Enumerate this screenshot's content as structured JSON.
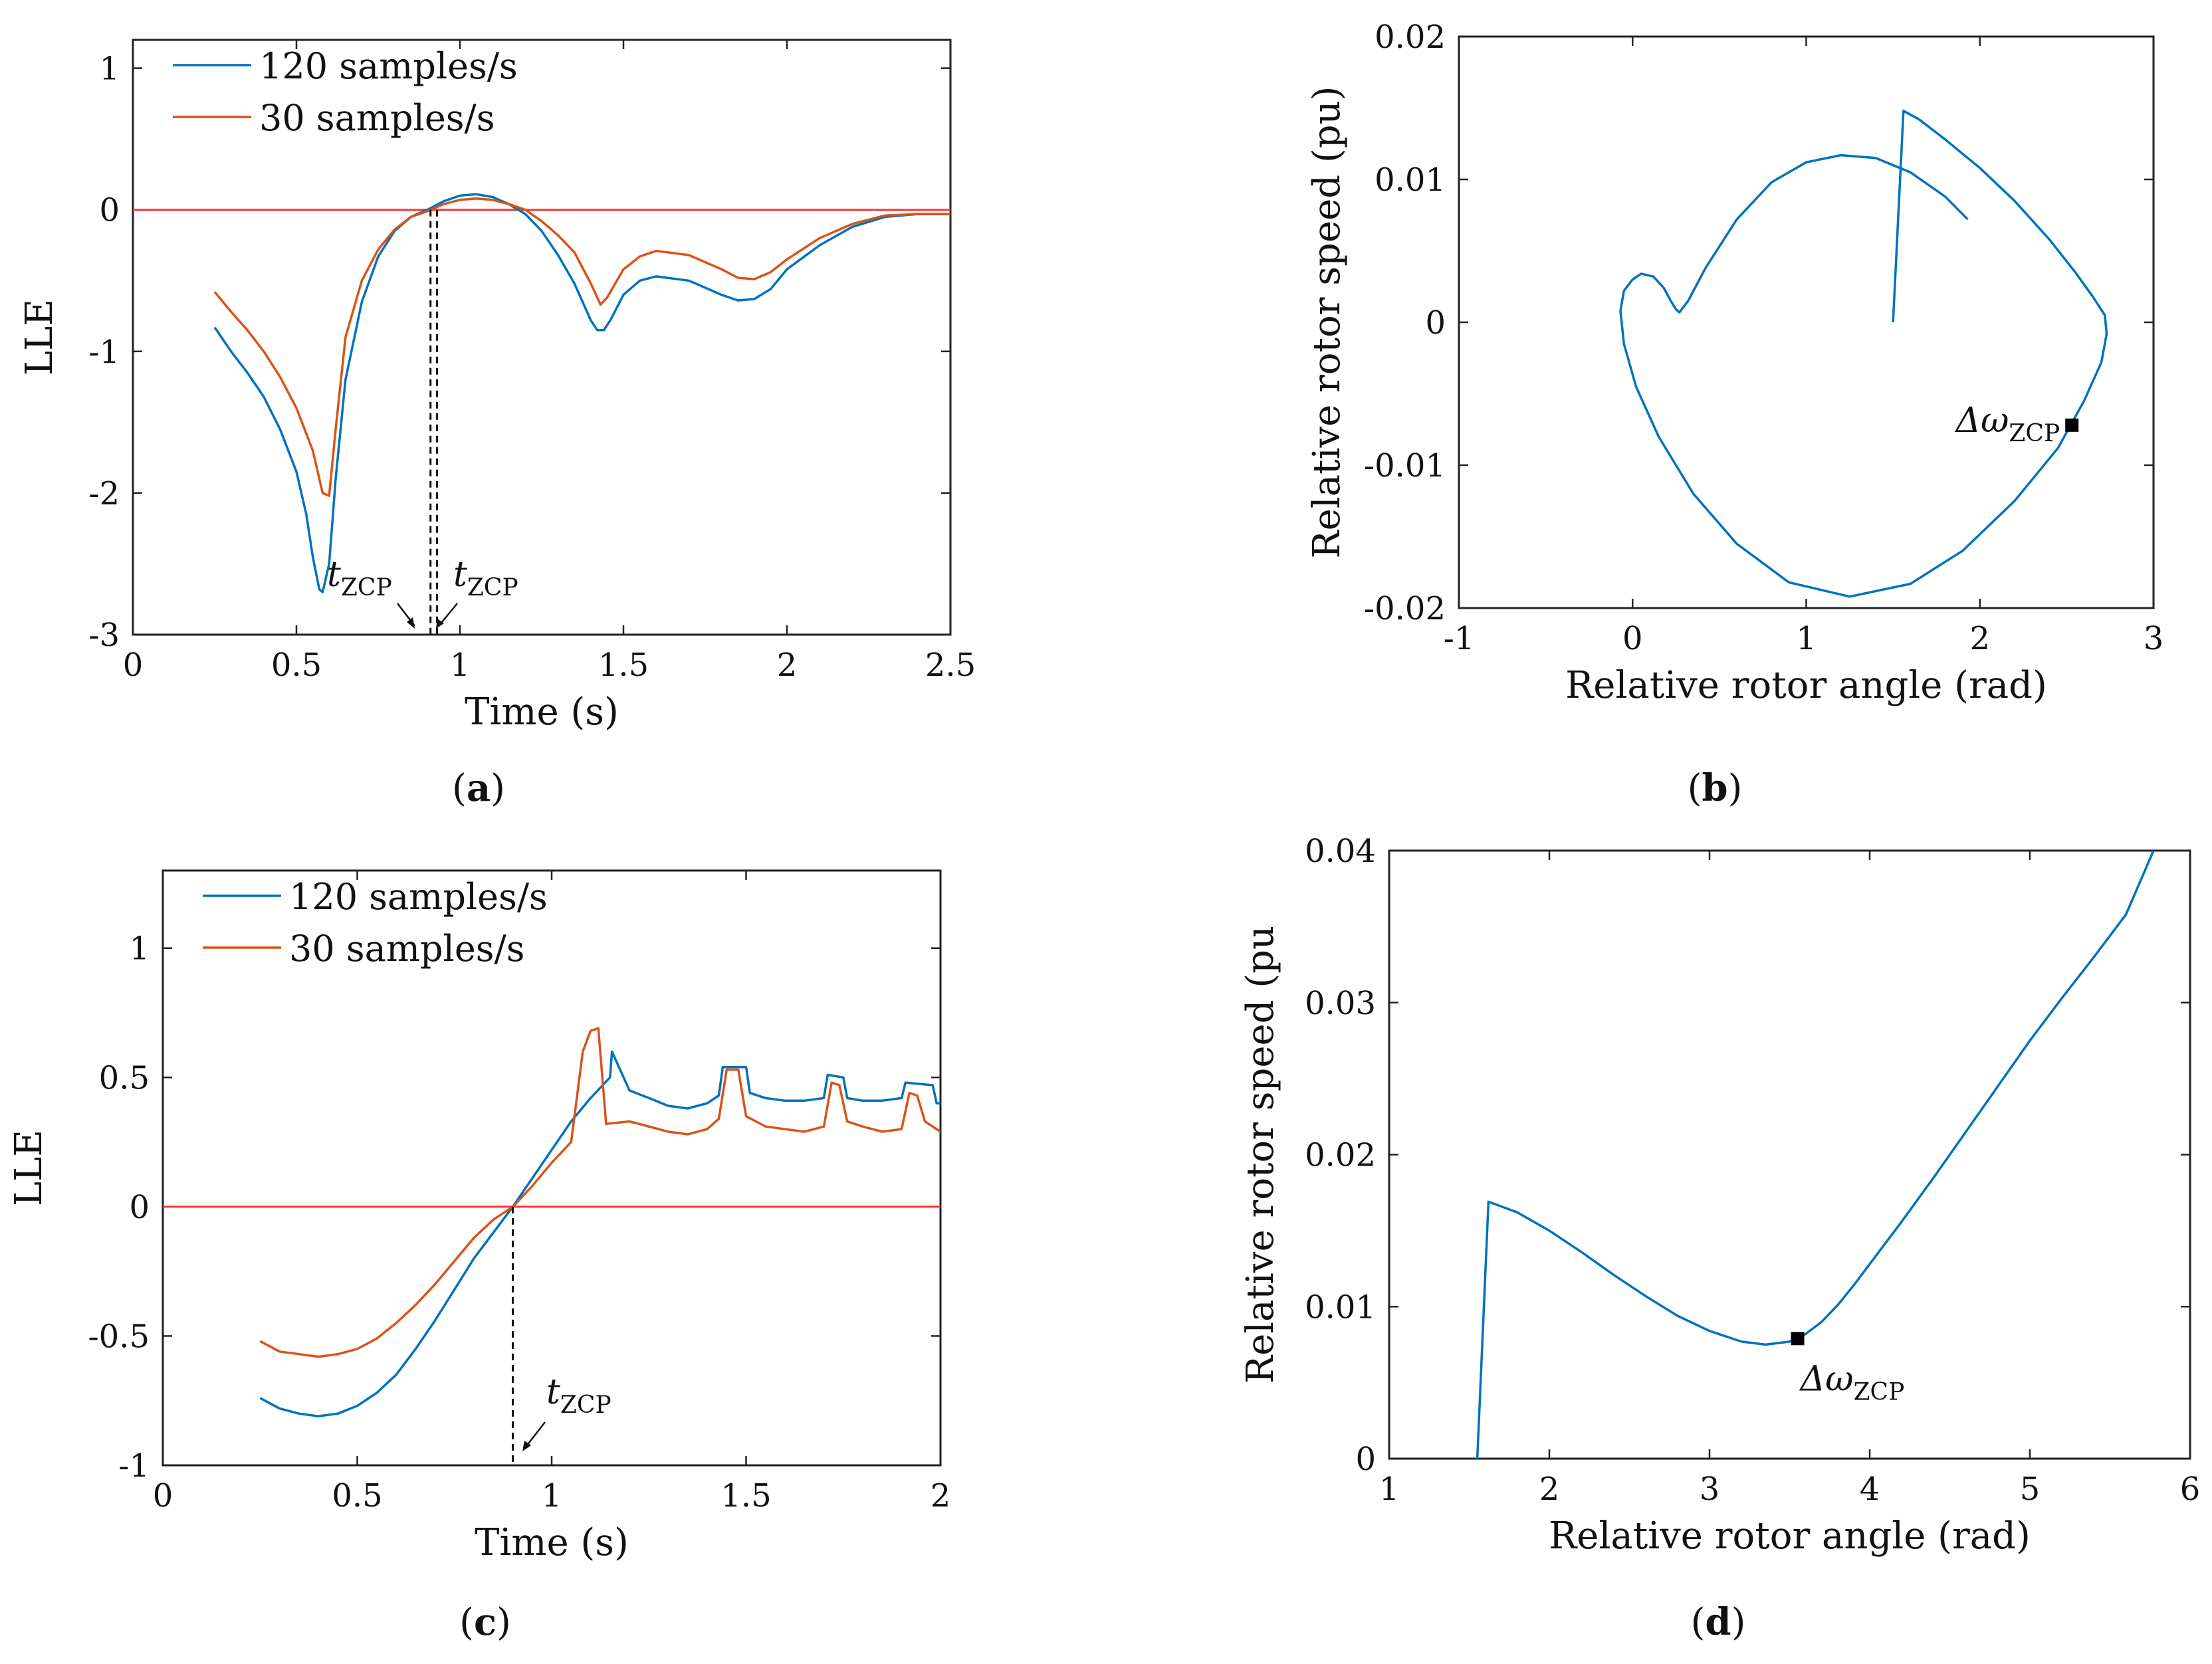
{
  "chart_data": [
    {
      "id": "a",
      "type": "line",
      "caption": "(a)",
      "xlabel": "Time (s)",
      "ylabel": "LLE",
      "xlim": [
        0,
        2.5
      ],
      "ylim": [
        -3,
        1.2
      ],
      "xticks": [
        0,
        0.5,
        1,
        1.5,
        2,
        2.5
      ],
      "yticks": [
        -3,
        -2,
        -1,
        0,
        1
      ],
      "xtick_labels": [
        "0",
        "0.5",
        "1",
        "1.5",
        "2",
        "2.5"
      ],
      "ytick_labels": [
        "-3",
        "-2",
        "-1",
        "0",
        "1"
      ],
      "legend": "top-left",
      "series": [
        {
          "name": "120 samples/s",
          "color": "#0072BD",
          "x": [
            0.25,
            0.3,
            0.35,
            0.4,
            0.45,
            0.5,
            0.53,
            0.55,
            0.57,
            0.58,
            0.6,
            0.62,
            0.65,
            0.7,
            0.75,
            0.8,
            0.85,
            0.9,
            0.95,
            1.0,
            1.05,
            1.1,
            1.15,
            1.2,
            1.25,
            1.3,
            1.35,
            1.4,
            1.42,
            1.44,
            1.46,
            1.5,
            1.55,
            1.6,
            1.7,
            1.8,
            1.85,
            1.9,
            1.95,
            2.0,
            2.1,
            2.2,
            2.3,
            2.4,
            2.5
          ],
          "y": [
            -0.83,
            -1.0,
            -1.15,
            -1.32,
            -1.55,
            -1.85,
            -2.15,
            -2.45,
            -2.68,
            -2.7,
            -2.5,
            -1.9,
            -1.2,
            -0.65,
            -0.33,
            -0.15,
            -0.05,
            0.0,
            0.06,
            0.1,
            0.11,
            0.09,
            0.04,
            -0.03,
            -0.15,
            -0.32,
            -0.52,
            -0.78,
            -0.85,
            -0.85,
            -0.78,
            -0.6,
            -0.5,
            -0.47,
            -0.5,
            -0.6,
            -0.64,
            -0.63,
            -0.56,
            -0.42,
            -0.25,
            -0.12,
            -0.05,
            -0.03,
            -0.03
          ]
        },
        {
          "name": "30 samples/s",
          "color": "#D95319",
          "x": [
            0.25,
            0.3,
            0.35,
            0.4,
            0.45,
            0.5,
            0.55,
            0.58,
            0.6,
            0.62,
            0.65,
            0.7,
            0.75,
            0.8,
            0.85,
            0.9,
            0.95,
            1.0,
            1.05,
            1.1,
            1.15,
            1.2,
            1.25,
            1.3,
            1.35,
            1.4,
            1.43,
            1.45,
            1.5,
            1.55,
            1.6,
            1.7,
            1.8,
            1.85,
            1.9,
            1.95,
            2.0,
            2.1,
            2.2,
            2.3,
            2.4,
            2.5
          ],
          "y": [
            -0.58,
            -0.72,
            -0.85,
            -1.0,
            -1.18,
            -1.4,
            -1.7,
            -2.0,
            -2.02,
            -1.55,
            -0.9,
            -0.5,
            -0.28,
            -0.14,
            -0.05,
            -0.01,
            0.04,
            0.07,
            0.08,
            0.07,
            0.04,
            0.0,
            -0.08,
            -0.18,
            -0.3,
            -0.52,
            -0.67,
            -0.62,
            -0.42,
            -0.33,
            -0.29,
            -0.32,
            -0.42,
            -0.48,
            -0.49,
            -0.44,
            -0.35,
            -0.2,
            -0.1,
            -0.04,
            -0.03,
            -0.03
          ]
        }
      ],
      "zero_line": 0,
      "markers": [
        0.91,
        0.93
      ],
      "annotations": [
        {
          "text": "t",
          "sub": "ZCP"
        },
        {
          "text": "t",
          "sub": "ZCP"
        }
      ]
    },
    {
      "id": "b",
      "type": "line",
      "caption": "(b)",
      "xlabel": "Relative rotor angle (rad)",
      "ylabel": "Relative rotor speed (pu)",
      "xlim": [
        -1,
        3
      ],
      "ylim": [
        -0.02,
        0.02
      ],
      "xticks": [
        -1,
        0,
        1,
        2,
        3
      ],
      "yticks": [
        -0.02,
        -0.01,
        0,
        0.01,
        0.02
      ],
      "xtick_labels": [
        "-1",
        "0",
        "1",
        "2",
        "3"
      ],
      "ytick_labels": [
        "-0.02",
        "-0.01",
        "0",
        "0.01",
        "0.02"
      ],
      "series": [
        {
          "name": "trajectory",
          "color": "#0072BD",
          "x": [
            1.5,
            1.56,
            1.65,
            1.8,
            2.0,
            2.2,
            2.4,
            2.55,
            2.65,
            2.72,
            2.73,
            2.7,
            2.6,
            2.45,
            2.2,
            1.9,
            1.6,
            1.25,
            0.9,
            0.6,
            0.35,
            0.15,
            0.02,
            -0.05,
            -0.07,
            -0.05,
            0.0,
            0.05,
            0.12,
            0.18,
            0.22,
            0.25,
            0.27,
            0.32,
            0.42,
            0.6,
            0.8,
            1.0,
            1.2,
            1.4,
            1.6,
            1.8,
            1.93
          ],
          "y": [
            0.0,
            0.0148,
            0.0142,
            0.0128,
            0.0108,
            0.0085,
            0.0058,
            0.0035,
            0.0018,
            0.0005,
            -0.0008,
            -0.0028,
            -0.0055,
            -0.0088,
            -0.0125,
            -0.016,
            -0.0183,
            -0.0192,
            -0.0182,
            -0.0155,
            -0.012,
            -0.008,
            -0.0045,
            -0.0015,
            0.0008,
            0.0022,
            0.003,
            0.0034,
            0.0032,
            0.0024,
            0.0015,
            0.0009,
            0.0007,
            0.0015,
            0.0038,
            0.0072,
            0.0098,
            0.0112,
            0.0117,
            0.0115,
            0.0105,
            0.0088,
            0.0072
          ]
        }
      ],
      "marker": {
        "x": 2.53,
        "y": -0.0072,
        "label": "Δω",
        "sub": "ZCP"
      }
    },
    {
      "id": "c",
      "type": "line",
      "caption": "(c)",
      "xlabel": "Time (s)",
      "ylabel": "LLE",
      "xlim": [
        0,
        2
      ],
      "ylim": [
        -1,
        1.3
      ],
      "xticks": [
        0,
        0.5,
        1,
        1.5,
        2
      ],
      "yticks": [
        -1,
        -0.5,
        0,
        0.5,
        1
      ],
      "xtick_labels": [
        "0",
        "0.5",
        "1",
        "1.5",
        "2"
      ],
      "ytick_labels": [
        "-1",
        "-0.5",
        "0",
        "0.5",
        "1"
      ],
      "legend": "top-left",
      "series": [
        {
          "name": "120 samples/s",
          "color": "#0072BD",
          "x": [
            0.25,
            0.3,
            0.35,
            0.4,
            0.45,
            0.5,
            0.55,
            0.6,
            0.65,
            0.7,
            0.75,
            0.8,
            0.85,
            0.9,
            0.95,
            1.0,
            1.05,
            1.1,
            1.15,
            1.155,
            1.2,
            1.25,
            1.3,
            1.35,
            1.4,
            1.43,
            1.44,
            1.5,
            1.51,
            1.55,
            1.6,
            1.65,
            1.7,
            1.71,
            1.75,
            1.76,
            1.8,
            1.85,
            1.9,
            1.91,
            1.98,
            1.99,
            2.0
          ],
          "y": [
            -0.74,
            -0.78,
            -0.8,
            -0.81,
            -0.8,
            -0.77,
            -0.72,
            -0.65,
            -0.55,
            -0.44,
            -0.32,
            -0.2,
            -0.1,
            0.0,
            0.11,
            0.22,
            0.33,
            0.42,
            0.5,
            0.6,
            0.45,
            0.42,
            0.39,
            0.38,
            0.4,
            0.43,
            0.54,
            0.54,
            0.44,
            0.42,
            0.41,
            0.41,
            0.42,
            0.51,
            0.5,
            0.42,
            0.41,
            0.41,
            0.42,
            0.48,
            0.47,
            0.4,
            0.4
          ]
        },
        {
          "name": "30 samples/s",
          "color": "#D95319",
          "x": [
            0.25,
            0.3,
            0.35,
            0.4,
            0.45,
            0.5,
            0.55,
            0.6,
            0.65,
            0.7,
            0.75,
            0.8,
            0.85,
            0.9,
            0.95,
            1.0,
            1.05,
            1.08,
            1.1,
            1.12,
            1.14,
            1.2,
            1.25,
            1.3,
            1.35,
            1.4,
            1.43,
            1.45,
            1.48,
            1.5,
            1.55,
            1.6,
            1.65,
            1.7,
            1.72,
            1.74,
            1.76,
            1.8,
            1.85,
            1.9,
            1.92,
            1.94,
            1.96,
            2.0
          ],
          "y": [
            -0.52,
            -0.56,
            -0.57,
            -0.58,
            -0.57,
            -0.55,
            -0.51,
            -0.45,
            -0.38,
            -0.3,
            -0.21,
            -0.12,
            -0.05,
            0.0,
            0.08,
            0.17,
            0.25,
            0.6,
            0.68,
            0.69,
            0.32,
            0.33,
            0.31,
            0.29,
            0.28,
            0.3,
            0.34,
            0.53,
            0.53,
            0.35,
            0.31,
            0.3,
            0.29,
            0.31,
            0.48,
            0.47,
            0.33,
            0.31,
            0.29,
            0.3,
            0.44,
            0.43,
            0.33,
            0.29
          ]
        }
      ],
      "zero_line": 0,
      "markers": [
        0.9
      ],
      "annotations": [
        {
          "text": "t",
          "sub": "ZCP"
        }
      ]
    },
    {
      "id": "d",
      "type": "line",
      "caption": "(d)",
      "xlabel": "Relative rotor angle (rad)",
      "ylabel": "Relative rotor speed (pu",
      "xlim": [
        1,
        6
      ],
      "ylim": [
        0,
        0.04
      ],
      "xticks": [
        1,
        2,
        3,
        4,
        5,
        6
      ],
      "yticks": [
        0,
        0.01,
        0.02,
        0.03,
        0.04
      ],
      "xtick_labels": [
        "1",
        "2",
        "3",
        "4",
        "5",
        "6"
      ],
      "ytick_labels": [
        "0",
        "0.01",
        "0.02",
        "0.03",
        "0.04"
      ],
      "series": [
        {
          "name": "trajectory",
          "color": "#0072BD",
          "x": [
            1.55,
            1.62,
            1.8,
            2.0,
            2.2,
            2.4,
            2.6,
            2.8,
            3.0,
            3.2,
            3.35,
            3.5,
            3.6,
            3.7,
            3.8,
            3.9,
            4.0,
            4.2,
            4.4,
            4.6,
            4.8,
            5.0,
            5.2,
            5.4,
            5.6,
            5.78
          ],
          "y": [
            0.0,
            0.0169,
            0.0162,
            0.015,
            0.0136,
            0.0121,
            0.0107,
            0.0094,
            0.0084,
            0.0077,
            0.0075,
            0.0077,
            0.0082,
            0.009,
            0.0101,
            0.0114,
            0.0128,
            0.0156,
            0.0185,
            0.0215,
            0.0245,
            0.0275,
            0.0303,
            0.033,
            0.0358,
            0.0402
          ]
        }
      ],
      "marker": {
        "x": 3.55,
        "y": 0.0079,
        "label": "Δω",
        "sub": "ZCP"
      }
    }
  ]
}
